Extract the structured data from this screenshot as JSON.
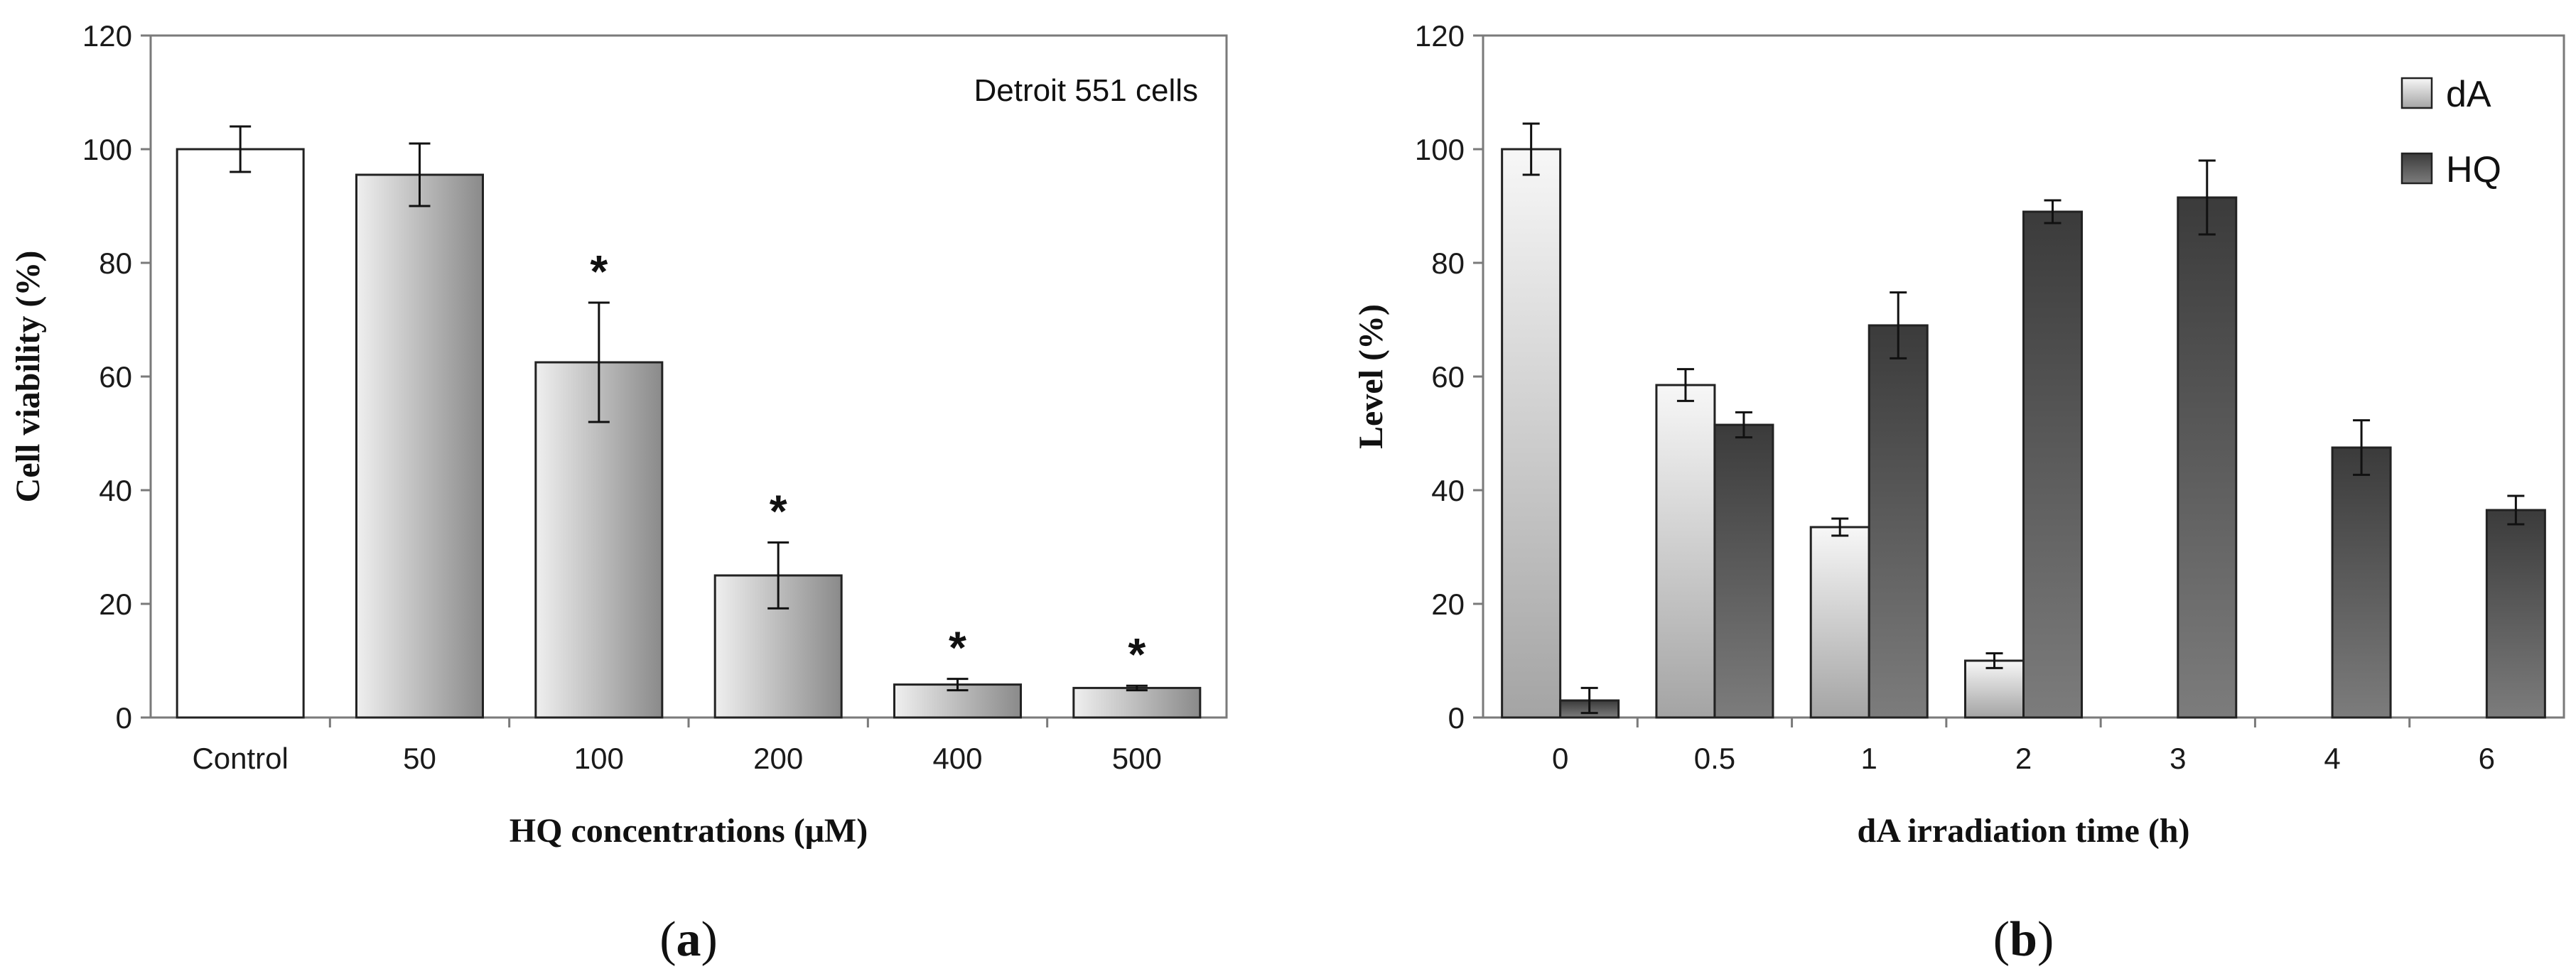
{
  "chart_data": [
    {
      "type": "bar",
      "panel": "a",
      "panel_label": "a",
      "annotation": "Detroit 551 cells",
      "xlabel": "HQ concentrations (μM)",
      "ylabel": "Cell viability (%)",
      "ylim": [
        0,
        120
      ],
      "yticks": [
        0,
        20,
        40,
        60,
        80,
        100,
        120
      ],
      "categories": [
        "Control",
        "50",
        "100",
        "200",
        "400",
        "500"
      ],
      "values": [
        100,
        95.5,
        62.5,
        25,
        5.8,
        5.2
      ],
      "errors": [
        4,
        5.5,
        10.5,
        5.8,
        1,
        0.4
      ],
      "significance": [
        "",
        "",
        "*",
        "*",
        "*",
        "*"
      ],
      "colors": {
        "control": "#ffffff",
        "treated_light": "#ececec",
        "treated_dark": "#8a8a8a"
      }
    },
    {
      "type": "bar",
      "panel": "b",
      "panel_label": "b",
      "xlabel": "dA irradiation time (h)",
      "ylabel": "Level (%)",
      "ylim": [
        0,
        120
      ],
      "yticks": [
        0,
        20,
        40,
        60,
        80,
        100,
        120
      ],
      "categories": [
        "0",
        "0.5",
        "1",
        "2",
        "3",
        "4",
        "6"
      ],
      "legend_position": "top-right",
      "series": [
        {
          "name": "dA",
          "values": [
            100,
            58.5,
            33.5,
            10,
            null,
            null,
            null
          ],
          "errors": [
            4.5,
            2.8,
            1.5,
            1.3,
            null,
            null,
            null
          ],
          "color_top": "#f5f5f5",
          "color_bottom": "#a9a9a9"
        },
        {
          "name": "HQ",
          "values": [
            3,
            51.5,
            69,
            89,
            91.5,
            47.5,
            36.5
          ],
          "errors": [
            2.2,
            2.2,
            5.8,
            2,
            6.5,
            4.8,
            2.5
          ],
          "color_top": "#3e3e3e",
          "color_bottom": "#7a7a7a"
        }
      ]
    }
  ]
}
